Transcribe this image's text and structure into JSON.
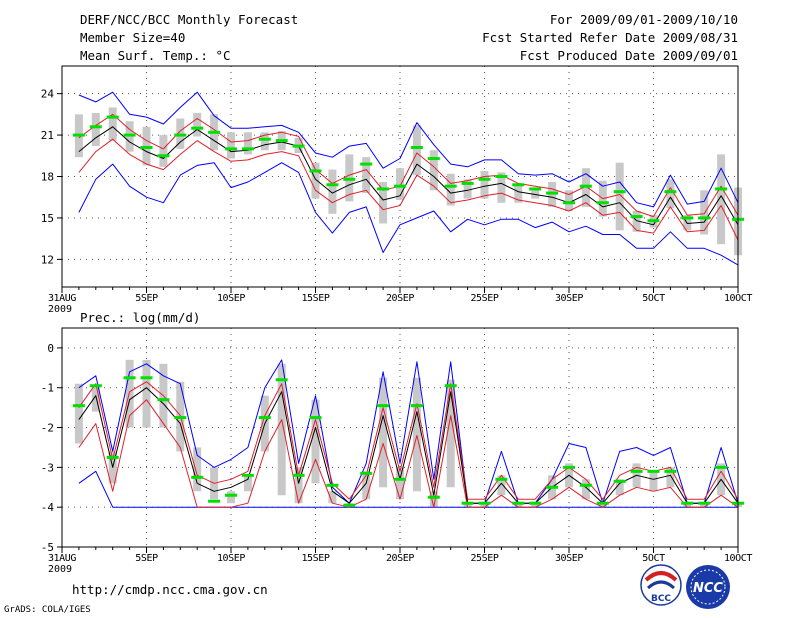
{
  "header": {
    "title": "DERF/NCC/BCC Monthly Forecast",
    "member_size": "Member Size=40",
    "temp_label": "Mean Surf. Temp.: °C",
    "forecast_period": "For 2009/09/01-2009/10/10",
    "started_date": "Fcst Started Refer Date 2009/08/31",
    "produced_date": "Fcst Produced Date 2009/09/01"
  },
  "footer": {
    "url": "http://cmdp.ncc.cma.gov.cn",
    "grads": "GrADS: COLA/IGES",
    "logo1": "BCC",
    "logo2": "NCC"
  },
  "colors": {
    "bar": "#c8c8c8",
    "mean": "#000000",
    "band": "#e0202c",
    "envelope": "#0000ff",
    "obs": "#00e000",
    "grid": "#555555"
  },
  "chart_data": [
    {
      "type": "ensemble-line",
      "title": "Mean Surf. Temp.: °C",
      "ylim": [
        10,
        26
      ],
      "yticks": [
        12,
        15,
        18,
        21,
        24
      ],
      "xlim": [
        0,
        40
      ],
      "xticks": [
        {
          "day": 0,
          "label": "31AUG"
        },
        {
          "day": 5,
          "label": "5SEP"
        },
        {
          "day": 10,
          "label": "10SEP"
        },
        {
          "day": 15,
          "label": "15SEP"
        },
        {
          "day": 20,
          "label": "20SEP"
        },
        {
          "day": 25,
          "label": "25SEP"
        },
        {
          "day": 30,
          "label": "30SEP"
        },
        {
          "day": 35,
          "label": "5OCT"
        },
        {
          "day": 40,
          "label": "10OCT"
        }
      ],
      "year_label": "2009",
      "x": [
        1,
        2,
        3,
        4,
        5,
        6,
        7,
        8,
        9,
        10,
        11,
        12,
        13,
        14,
        15,
        16,
        17,
        18,
        19,
        20,
        21,
        22,
        23,
        24,
        25,
        26,
        27,
        28,
        29,
        30,
        31,
        32,
        33,
        34,
        35,
        36,
        37,
        38,
        39,
        40
      ],
      "mean": [
        19.8,
        20.8,
        21.6,
        20.5,
        19.8,
        19.3,
        20.5,
        21.4,
        20.6,
        19.8,
        19.9,
        20.3,
        20.5,
        20.2,
        17.8,
        16.8,
        17.4,
        17.8,
        16.3,
        16.6,
        18.9,
        18.0,
        16.8,
        17.0,
        17.3,
        17.5,
        16.9,
        16.7,
        16.5,
        16.1,
        16.7,
        15.8,
        16.1,
        14.8,
        14.5,
        16.5,
        14.6,
        14.7,
        16.6,
        14.5
      ],
      "upper_band": [
        20.8,
        21.7,
        22.5,
        21.4,
        20.6,
        20.0,
        21.3,
        22.2,
        21.4,
        20.5,
        20.6,
        21.0,
        21.2,
        20.9,
        18.5,
        17.5,
        18.1,
        18.5,
        17.0,
        17.3,
        19.7,
        18.7,
        17.5,
        17.7,
        18.0,
        18.1,
        17.5,
        17.3,
        17.1,
        16.7,
        17.3,
        16.4,
        16.7,
        15.5,
        15.1,
        17.2,
        15.2,
        15.3,
        17.3,
        15.2
      ],
      "lower_band": [
        18.3,
        19.8,
        20.7,
        19.6,
        18.9,
        18.5,
        19.6,
        20.6,
        19.8,
        19.1,
        19.2,
        19.6,
        19.8,
        19.5,
        17.0,
        16.1,
        16.7,
        17.0,
        15.6,
        15.9,
        18.1,
        17.3,
        16.1,
        16.3,
        16.6,
        16.8,
        16.3,
        16.1,
        15.9,
        15.5,
        16.1,
        15.2,
        15.4,
        14.1,
        13.9,
        15.8,
        14.0,
        14.1,
        15.9,
        13.4
      ],
      "upper_envelope": [
        23.9,
        23.4,
        24.1,
        22.5,
        22.3,
        21.8,
        23.0,
        24.1,
        22.4,
        21.5,
        21.5,
        21.6,
        21.7,
        21.2,
        19.7,
        19.4,
        20.2,
        20.4,
        18.6,
        19.3,
        21.9,
        20.3,
        18.9,
        18.7,
        19.2,
        19.2,
        18.2,
        18.1,
        18.2,
        17.6,
        18.2,
        17.3,
        17.6,
        16.1,
        15.8,
        18.1,
        16.0,
        16.2,
        18.6,
        16.1
      ],
      "lower_envelope": [
        15.4,
        17.8,
        18.9,
        17.3,
        16.5,
        16.1,
        18.1,
        18.8,
        19.0,
        17.2,
        17.6,
        18.3,
        19.0,
        18.3,
        15.4,
        13.9,
        15.4,
        15.8,
        12.5,
        14.5,
        15.0,
        15.5,
        14.0,
        14.9,
        14.5,
        14.9,
        14.9,
        14.3,
        14.7,
        14.0,
        14.4,
        13.8,
        13.8,
        12.8,
        12.8,
        14.0,
        12.8,
        12.8,
        12.3,
        11.6
      ],
      "bar_top": [
        22.5,
        22.6,
        23.0,
        22.0,
        21.6,
        21.0,
        22.2,
        22.6,
        22.5,
        21.2,
        21.2,
        21.2,
        21.3,
        20.8,
        19.0,
        18.5,
        19.6,
        19.4,
        17.6,
        18.6,
        21.7,
        19.9,
        18.2,
        17.8,
        18.4,
        18.3,
        17.3,
        17.2,
        17.6,
        17.0,
        18.6,
        17.7,
        19.0,
        15.5,
        15.2,
        17.8,
        15.2,
        17.0,
        19.6,
        17.2
      ],
      "bar_bottom": [
        19.4,
        20.2,
        20.6,
        19.8,
        18.8,
        18.7,
        20.0,
        20.9,
        19.9,
        19.3,
        19.6,
        19.9,
        19.9,
        19.7,
        16.4,
        15.3,
        16.2,
        16.8,
        14.6,
        16.3,
        18.1,
        17.0,
        15.9,
        16.4,
        16.4,
        16.1,
        16.1,
        16.4,
        15.8,
        15.5,
        15.8,
        15.1,
        14.1,
        14.0,
        14.3,
        15.7,
        14.1,
        13.8,
        13.1,
        12.3
      ],
      "obs": [
        21.0,
        21.6,
        22.3,
        21.0,
        20.1,
        19.5,
        21.0,
        21.5,
        21.2,
        20.0,
        20.0,
        20.7,
        20.6,
        20.2,
        18.4,
        17.4,
        17.8,
        18.9,
        17.1,
        17.3,
        20.1,
        19.3,
        17.3,
        17.5,
        17.8,
        18.0,
        17.4,
        17.1,
        16.8,
        16.1,
        17.3,
        16.1,
        16.9,
        15.1,
        14.8,
        16.9,
        15.0,
        15.0,
        17.1,
        14.9
      ]
    },
    {
      "type": "ensemble-line",
      "title": "Prec.: log(mm/d)",
      "ylim": [
        -5,
        0.5
      ],
      "yticks": [
        -5,
        -4,
        -3,
        -2,
        -1,
        0
      ],
      "xlim": [
        0,
        40
      ],
      "xticks": [
        {
          "day": 0,
          "label": "31AUG"
        },
        {
          "day": 5,
          "label": "5SEP"
        },
        {
          "day": 10,
          "label": "10SEP"
        },
        {
          "day": 15,
          "label": "15SEP"
        },
        {
          "day": 20,
          "label": "20SEP"
        },
        {
          "day": 25,
          "label": "25SEP"
        },
        {
          "day": 30,
          "label": "30SEP"
        },
        {
          "day": 35,
          "label": "5OCT"
        },
        {
          "day": 40,
          "label": "10OCT"
        }
      ],
      "year_label": "2009",
      "x": [
        1,
        2,
        3,
        4,
        5,
        6,
        7,
        8,
        9,
        10,
        11,
        12,
        13,
        14,
        15,
        16,
        17,
        18,
        19,
        20,
        21,
        22,
        23,
        24,
        25,
        26,
        27,
        28,
        29,
        30,
        31,
        32,
        33,
        34,
        35,
        36,
        37,
        38,
        39,
        40
      ],
      "mean": [
        -1.8,
        -1.2,
        -3.0,
        -1.3,
        -1.0,
        -1.4,
        -1.9,
        -3.4,
        -3.6,
        -3.5,
        -3.3,
        -1.9,
        -1.1,
        -3.4,
        -2.0,
        -3.6,
        -3.9,
        -3.4,
        -1.7,
        -3.3,
        -1.6,
        -3.7,
        -1.1,
        -3.9,
        -3.9,
        -3.4,
        -3.9,
        -3.9,
        -3.5,
        -3.2,
        -3.5,
        -3.9,
        -3.4,
        -3.2,
        -3.3,
        -3.2,
        -3.9,
        -3.9,
        -3.3,
        -3.9
      ],
      "upper_band": [
        -1.5,
        -0.9,
        -2.8,
        -1.1,
        -0.85,
        -1.2,
        -1.7,
        -3.2,
        -3.4,
        -3.3,
        -3.1,
        -1.7,
        -0.9,
        -3.2,
        -1.8,
        -3.4,
        -3.8,
        -3.2,
        -1.5,
        -3.1,
        -1.4,
        -3.5,
        -0.9,
        -3.8,
        -3.8,
        -3.2,
        -3.8,
        -3.8,
        -3.3,
        -3.0,
        -3.3,
        -3.8,
        -3.2,
        -3.0,
        -3.1,
        -3.0,
        -3.8,
        -3.8,
        -3.1,
        -3.8
      ],
      "lower_band": [
        -2.5,
        -1.9,
        -3.6,
        -1.7,
        -1.3,
        -1.9,
        -2.5,
        -4.0,
        -4.0,
        -4.0,
        -3.9,
        -2.6,
        -1.8,
        -3.9,
        -2.8,
        -3.9,
        -4.0,
        -3.8,
        -2.4,
        -3.8,
        -2.2,
        -4.0,
        -1.7,
        -4.0,
        -4.0,
        -3.7,
        -4.0,
        -4.0,
        -3.8,
        -3.5,
        -3.8,
        -4.0,
        -3.7,
        -3.5,
        -3.6,
        -3.5,
        -4.0,
        -4.0,
        -3.7,
        -4.0
      ],
      "upper_envelope": [
        -1.0,
        -0.7,
        -2.6,
        -0.6,
        -0.4,
        -0.7,
        -0.9,
        -2.7,
        -3.0,
        -2.8,
        -2.5,
        -1.0,
        -0.3,
        -2.9,
        -1.2,
        -3.5,
        -3.9,
        -2.9,
        -0.6,
        -2.9,
        -0.35,
        -3.3,
        -0.35,
        -3.9,
        -3.9,
        -2.6,
        -3.9,
        -3.9,
        -3.3,
        -2.4,
        -2.5,
        -3.9,
        -2.6,
        -2.5,
        -2.7,
        -2.5,
        -3.9,
        -3.9,
        -2.5,
        -3.9
      ],
      "lower_envelope": [
        -3.4,
        -3.1,
        -4.0,
        -4.0,
        -4.0,
        -4.0,
        -4.0,
        -4.0,
        -4.0,
        -4.0,
        -4.0,
        -4.0,
        -4.0,
        -4.0,
        -4.0,
        -4.0,
        -4.0,
        -4.0,
        -4.0,
        -4.0,
        -4.0,
        -4.0,
        -4.0,
        -4.0,
        -4.0,
        -4.0,
        -4.0,
        -4.0,
        -4.0,
        -4.0,
        -4.0,
        -4.0,
        -4.0,
        -4.0,
        -4.0,
        -4.0,
        -4.0,
        -4.0,
        -4.0,
        -4.0
      ],
      "bar_top": [
        -0.9,
        -0.95,
        -2.6,
        -0.3,
        -0.3,
        -0.4,
        -0.85,
        -2.5,
        -3.0,
        -3.6,
        -3.2,
        -1.2,
        -0.4,
        -3.0,
        -1.3,
        -3.6,
        -3.9,
        -3.1,
        -0.75,
        -3.0,
        -0.75,
        -3.6,
        -0.8,
        -3.9,
        -3.9,
        -3.2,
        -3.9,
        -3.9,
        -3.2,
        -2.9,
        -3.3,
        -3.9,
        -3.3,
        -2.9,
        -3.1,
        -3.0,
        -3.9,
        -3.9,
        -2.9,
        -3.9
      ],
      "bar_bottom": [
        -2.4,
        -1.6,
        -3.4,
        -2.0,
        -2.0,
        -2.0,
        -2.6,
        -3.6,
        -3.8,
        -3.9,
        -3.6,
        -2.6,
        -3.7,
        -3.9,
        -3.4,
        -3.9,
        -4.0,
        -3.8,
        -3.5,
        -3.8,
        -3.6,
        -4.0,
        -3.5,
        -4.0,
        -4.0,
        -3.7,
        -4.0,
        -4.0,
        -3.8,
        -3.5,
        -3.8,
        -4.0,
        -3.7,
        -3.5,
        -3.6,
        -3.5,
        -4.0,
        -4.0,
        -3.7,
        -4.0
      ],
      "obs": [
        -1.45,
        -0.95,
        -2.75,
        -0.75,
        -0.75,
        -1.3,
        -1.75,
        -3.25,
        -3.85,
        -3.7,
        -3.2,
        -1.75,
        -0.8,
        -3.2,
        -1.75,
        -3.45,
        -3.95,
        -3.15,
        -1.45,
        -3.3,
        -1.45,
        -3.75,
        -0.95,
        -3.9,
        -3.9,
        -3.3,
        -3.9,
        -3.9,
        -3.5,
        -3.0,
        -3.45,
        -3.9,
        -3.35,
        -3.1,
        -3.1,
        -3.1,
        -3.9,
        -3.9,
        -3.0,
        -3.9
      ]
    }
  ]
}
